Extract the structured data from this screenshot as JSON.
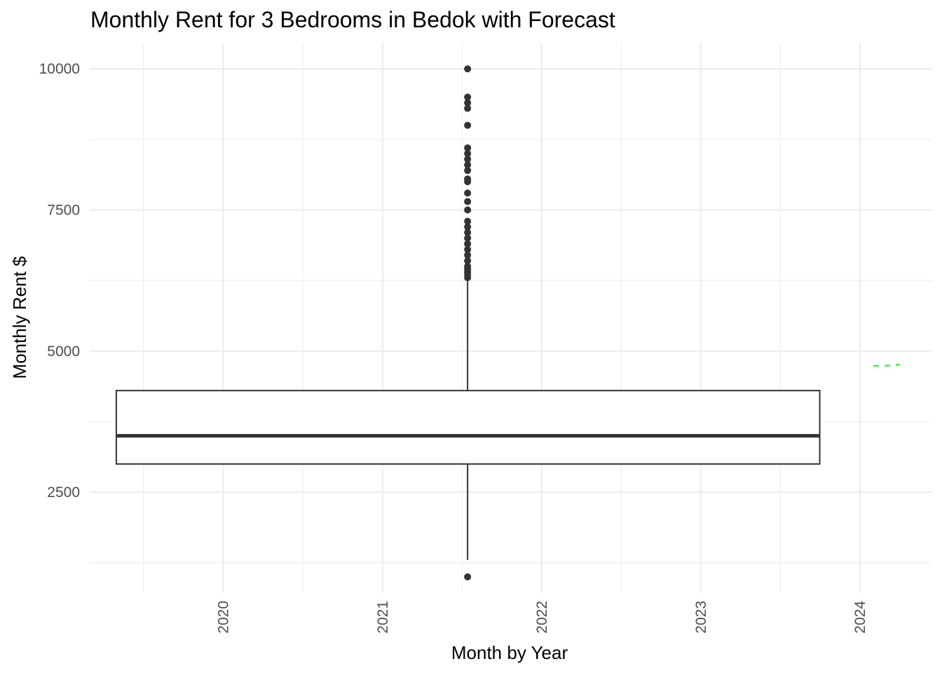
{
  "chart_data": {
    "type": "box",
    "title": "Monthly Rent for 3 Bedrooms in Bedok with Forecast",
    "xlabel": "Month by Year",
    "ylabel": "Monthly Rent $",
    "x_range": [
      "2019-03-01",
      "2024-06-15"
    ],
    "x_ticks": [
      "2020",
      "2021",
      "2022",
      "2023",
      "2024"
    ],
    "x_tick_dates": [
      "2020-01-01",
      "2021-01-01",
      "2022-01-01",
      "2023-01-01",
      "2024-01-01"
    ],
    "ylim": [
      725,
      10450
    ],
    "y_ticks": [
      2500,
      5000,
      7500,
      10000
    ],
    "grid": true,
    "box": {
      "x_start": "2019-05-01",
      "x_end": "2023-10-01",
      "x_center": "2021-07-15",
      "q1": 3000,
      "median": 3500,
      "q3": 4300,
      "whisker_low": 1300,
      "whisker_high": 6250,
      "outliers": [
        1000,
        6300,
        6350,
        6400,
        6450,
        6500,
        6600,
        6700,
        6800,
        6900,
        7000,
        7100,
        7200,
        7300,
        7500,
        7650,
        7800,
        8000,
        8050,
        8200,
        8300,
        8400,
        8500,
        8600,
        9000,
        9300,
        9400,
        9500,
        10000
      ]
    },
    "forecast": {
      "x": [
        "2024-02-01",
        "2024-03-01",
        "2024-04-01"
      ],
      "y": [
        4740,
        4740,
        4760
      ],
      "color": "#00ff00",
      "style": "dashed"
    },
    "colors": {
      "box_line": "#333333",
      "grid": "#ebebeb",
      "background": "#ffffff"
    }
  }
}
